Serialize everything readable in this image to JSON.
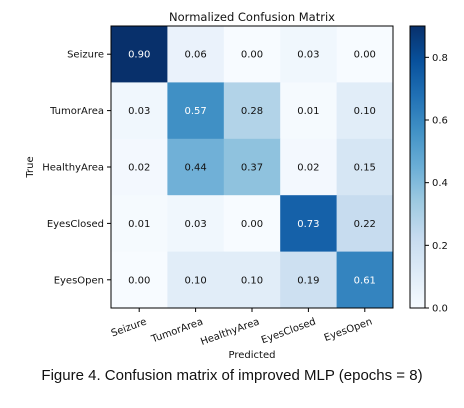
{
  "chart_data": {
    "type": "heatmap",
    "title": "Normalized Confusion Matrix",
    "xlabel": "Predicted",
    "ylabel": "True",
    "x_categories": [
      "Seizure",
      "TumorArea",
      "HealthyArea",
      "EyesClosed",
      "EyesOpen"
    ],
    "y_categories": [
      "Seizure",
      "TumorArea",
      "HealthyArea",
      "EyesClosed",
      "EyesOpen"
    ],
    "values": [
      [
        0.9,
        0.06,
        0.0,
        0.03,
        0.0
      ],
      [
        0.03,
        0.57,
        0.28,
        0.01,
        0.1
      ],
      [
        0.02,
        0.44,
        0.37,
        0.02,
        0.15
      ],
      [
        0.01,
        0.03,
        0.0,
        0.73,
        0.22
      ],
      [
        0.0,
        0.1,
        0.1,
        0.19,
        0.61
      ]
    ],
    "value_labels": [
      [
        "0.90",
        "0.06",
        "0.00",
        "0.03",
        "0.00"
      ],
      [
        "0.03",
        "0.57",
        "0.28",
        "0.01",
        "0.10"
      ],
      [
        "0.02",
        "0.44",
        "0.37",
        "0.02",
        "0.15"
      ],
      [
        "0.01",
        "0.03",
        "0.00",
        "0.73",
        "0.22"
      ],
      [
        "0.00",
        "0.10",
        "0.10",
        "0.19",
        "0.61"
      ]
    ],
    "colormap": "Blues",
    "colorbar": {
      "range": [
        0,
        0.9
      ],
      "ticks": [
        0.0,
        0.2,
        0.4,
        0.6,
        0.8
      ],
      "tick_labels": [
        "0.0",
        "0.2",
        "0.4",
        "0.6",
        "0.8"
      ]
    },
    "x_tick_rotation": "rotated"
  },
  "caption": "Figure 4. Confusion matrix of improved MLP (epochs = 8)"
}
